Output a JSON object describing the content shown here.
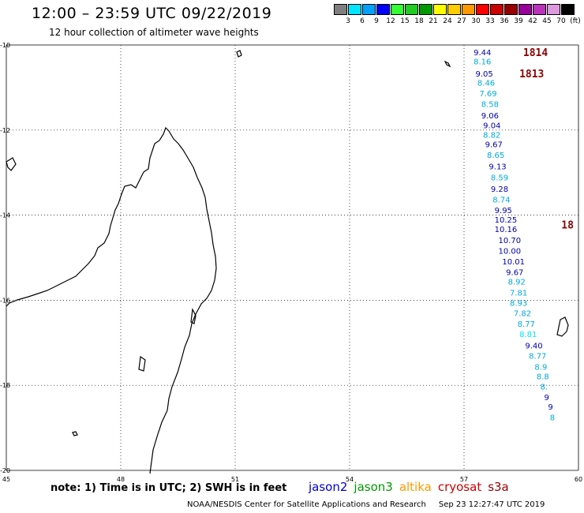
{
  "header": {
    "title": "12:00 – 23:59 UTC 09/22/2019",
    "subtitle": "12 hour collection of altimeter wave heights"
  },
  "color_scale": {
    "colors": [
      "#7f7f7f",
      "#00e5ff",
      "#00a0ff",
      "#0000ff",
      "#33ff33",
      "#22cc22",
      "#009900",
      "#ffff00",
      "#ffcc00",
      "#ff9900",
      "#ff0000",
      "#cc0000",
      "#990000",
      "#990099",
      "#bb33bb",
      "#dd99dd",
      "#000000"
    ],
    "labels": [
      "3",
      "6",
      "9",
      "12",
      "15",
      "18",
      "21",
      "24",
      "27",
      "30",
      "33",
      "36",
      "39",
      "42",
      "45",
      "70",
      "(ft)"
    ]
  },
  "map": {
    "lon_min": 45,
    "lon_max": 60,
    "lat_min": -20,
    "lat_max": -10,
    "lon_ticks": [
      "45",
      "48",
      "51",
      "54",
      "57",
      "60"
    ],
    "lat_ticks": [
      "-10",
      "-12",
      "-14",
      "-16",
      "-18",
      "-20"
    ]
  },
  "passes": [
    {
      "label": "1814",
      "lon": 58.55,
      "lat": -10.17
    },
    {
      "label": "1813",
      "lon": 58.45,
      "lat": -10.67
    },
    {
      "label": "18",
      "lon": 59.55,
      "lat": -14.22
    }
  ],
  "wave_heights": [
    {
      "v": "9.44",
      "lon": 57.25,
      "lat": -10.17,
      "c": "#0000aa"
    },
    {
      "v": "8.16",
      "lon": 57.25,
      "lat": -10.38,
      "c": "#00aadd"
    },
    {
      "v": "9.05",
      "lon": 57.3,
      "lat": -10.67,
      "c": "#0000aa"
    },
    {
      "v": "8.46",
      "lon": 57.35,
      "lat": -10.88,
      "c": "#00aadd"
    },
    {
      "v": "7.69",
      "lon": 57.4,
      "lat": -11.13,
      "c": "#00aadd"
    },
    {
      "v": "8.58",
      "lon": 57.45,
      "lat": -11.38,
      "c": "#00aadd"
    },
    {
      "v": "9.06",
      "lon": 57.45,
      "lat": -11.65,
      "c": "#0000aa"
    },
    {
      "v": "9.04",
      "lon": 57.5,
      "lat": -11.88,
      "c": "#0000aa"
    },
    {
      "v": "8.82",
      "lon": 57.5,
      "lat": -12.11,
      "c": "#00aadd"
    },
    {
      "v": "9.67",
      "lon": 57.55,
      "lat": -12.33,
      "c": "#0000aa"
    },
    {
      "v": "8.65",
      "lon": 57.6,
      "lat": -12.58,
      "c": "#00aadd"
    },
    {
      "v": "9.13",
      "lon": 57.65,
      "lat": -12.85,
      "c": "#0000aa"
    },
    {
      "v": "8.59",
      "lon": 57.7,
      "lat": -13.11,
      "c": "#00aadd"
    },
    {
      "v": "9.28",
      "lon": 57.7,
      "lat": -13.38,
      "c": "#0000aa"
    },
    {
      "v": "8.74",
      "lon": 57.75,
      "lat": -13.63,
      "c": "#00aadd"
    },
    {
      "v": "9.95",
      "lon": 57.8,
      "lat": -13.88,
      "c": "#0000aa"
    },
    {
      "v": "10.25",
      "lon": 57.8,
      "lat": -14.1,
      "c": "#0000aa"
    },
    {
      "v": "10.16",
      "lon": 57.8,
      "lat": -14.32,
      "c": "#0000aa"
    },
    {
      "v": "10.70",
      "lon": 57.9,
      "lat": -14.58,
      "c": "#0000aa"
    },
    {
      "v": "10.00",
      "lon": 57.9,
      "lat": -14.83,
      "c": "#0000aa"
    },
    {
      "v": "10.01",
      "lon": 58.0,
      "lat": -15.08,
      "c": "#0000aa"
    },
    {
      "v": "9.67",
      "lon": 58.1,
      "lat": -15.33,
      "c": "#0000aa"
    },
    {
      "v": "8.92",
      "lon": 58.15,
      "lat": -15.56,
      "c": "#00aadd"
    },
    {
      "v": "7.81",
      "lon": 58.2,
      "lat": -15.82,
      "c": "#00aadd"
    },
    {
      "v": "8.93",
      "lon": 58.2,
      "lat": -16.06,
      "c": "#00aadd"
    },
    {
      "v": "7.82",
      "lon": 58.3,
      "lat": -16.3,
      "c": "#00aadd"
    },
    {
      "v": "8.77",
      "lon": 58.4,
      "lat": -16.55,
      "c": "#00aadd"
    },
    {
      "v": "8.81",
      "lon": 58.45,
      "lat": -16.79,
      "c": "#00e5ff"
    },
    {
      "v": "9.40",
      "lon": 58.6,
      "lat": -17.06,
      "c": "#0000aa"
    },
    {
      "v": "8.77",
      "lon": 58.7,
      "lat": -17.3,
      "c": "#00aadd"
    },
    {
      "v": "8.9",
      "lon": 58.85,
      "lat": -17.56,
      "c": "#00aadd"
    },
    {
      "v": "8.8",
      "lon": 58.9,
      "lat": -17.78,
      "c": "#00aadd"
    },
    {
      "v": "8.",
      "lon": 59.0,
      "lat": -18.02,
      "c": "#00aadd"
    },
    {
      "v": "9",
      "lon": 59.1,
      "lat": -18.27,
      "c": "#0000aa"
    },
    {
      "v": "9",
      "lon": 59.2,
      "lat": -18.5,
      "c": "#0000aa"
    },
    {
      "v": "8",
      "lon": 59.25,
      "lat": -18.75,
      "c": "#00aadd"
    }
  ],
  "note": "note: 1) Time is in UTC; 2) SWH is in feet",
  "satellites": [
    {
      "name": "jason2",
      "color": "#0000cc"
    },
    {
      "name": "jason3",
      "color": "#009900"
    },
    {
      "name": "altika",
      "color": "#ff9900"
    },
    {
      "name": "cryosat",
      "color": "#cc0000"
    },
    {
      "name": "s3a",
      "color": "#990000"
    }
  ],
  "footer": {
    "credit": "NOAA/NESDIS Center for Satellite Applications and Research",
    "timestamp": "Sep 23 12:27:47 UTC 2019"
  }
}
